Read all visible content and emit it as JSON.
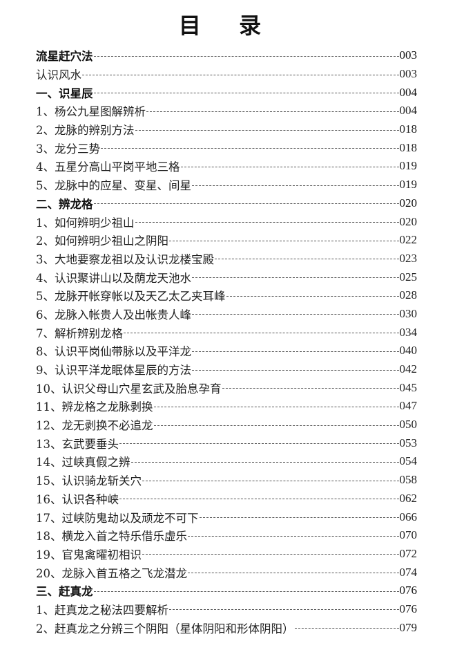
{
  "title": "目 录",
  "entries": [
    {
      "label": "流星赶穴法",
      "page": "003",
      "heading": true
    },
    {
      "label": "认识风水",
      "page": "003",
      "heading": false
    },
    {
      "label": "一、识星辰",
      "page": "004",
      "heading": true
    },
    {
      "label": "1、杨公九星图解辨析",
      "page": "004",
      "heading": false
    },
    {
      "label": "2、龙脉的辨别方法",
      "page": "018",
      "heading": false
    },
    {
      "label": "3、龙分三势",
      "page": "018",
      "heading": false
    },
    {
      "label": "4、五星分高山平岗平地三格",
      "page": "019",
      "heading": false
    },
    {
      "label": "5、龙脉中的应星、变星、间星",
      "page": "019",
      "heading": false
    },
    {
      "label": "二、辨龙格",
      "page": "020",
      "heading": true
    },
    {
      "label": "1、如何辨明少祖山",
      "page": "020",
      "heading": false
    },
    {
      "label": "2、如何辨明少祖山之阴阳",
      "page": "022",
      "heading": false
    },
    {
      "label": "3、大地要察龙祖以及认识龙楼宝殿",
      "page": "023",
      "heading": false
    },
    {
      "label": "4、认识聚讲山以及荫龙天池水",
      "page": "025",
      "heading": false
    },
    {
      "label": "5、龙脉开帐穿帐以及天乙太乙夹耳峰",
      "page": "028",
      "heading": false
    },
    {
      "label": "6、龙脉入帐贵人及出帐贵人峰",
      "page": "030",
      "heading": false
    },
    {
      "label": "7、解析辨别龙格",
      "page": "034",
      "heading": false
    },
    {
      "label": "8、认识平岗仙带脉以及平洋龙",
      "page": "040",
      "heading": false
    },
    {
      "label": "9、认识平洋龙眠体星辰的方法",
      "page": "042",
      "heading": false
    },
    {
      "label": "10、认识父母山穴星玄武及胎息孕育",
      "page": "045",
      "heading": false
    },
    {
      "label": "11、辨龙格之龙脉剥换",
      "page": "047",
      "heading": false
    },
    {
      "label": "12、龙无剥换不必追龙",
      "page": "050",
      "heading": false
    },
    {
      "label": "13、玄武要垂头",
      "page": "053",
      "heading": false
    },
    {
      "label": "14、过峡真假之辨",
      "page": "054",
      "heading": false
    },
    {
      "label": "15、认识骑龙斩关穴",
      "page": "058",
      "heading": false
    },
    {
      "label": "16、认识各种峡",
      "page": "062",
      "heading": false
    },
    {
      "label": "17、过峡防鬼劫以及顽龙不可下",
      "page": "066",
      "heading": false
    },
    {
      "label": "18、横龙入首之特乐借乐虚乐",
      "page": "070",
      "heading": false
    },
    {
      "label": "19、官鬼禽曜初相识",
      "page": "072",
      "heading": false
    },
    {
      "label": "20、龙脉入首五格之飞龙潜龙",
      "page": "074",
      "heading": false
    },
    {
      "label": "三、赶真龙",
      "page": "076",
      "heading": true
    },
    {
      "label": "1、赶真龙之秘法四要解析",
      "page": "076",
      "heading": false
    },
    {
      "label": "2、赶真龙之分辨三个阴阳（星体阴阳和形体阴阳）",
      "page": "079",
      "heading": false
    }
  ]
}
